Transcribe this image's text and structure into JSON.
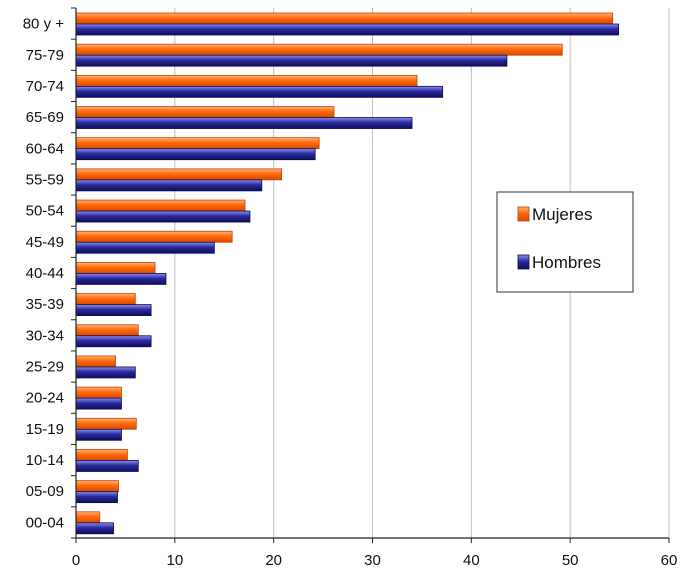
{
  "chart_data": {
    "type": "bar",
    "orientation": "horizontal",
    "title": "",
    "xlabel": "",
    "ylabel": "",
    "xlim": [
      0,
      60
    ],
    "x_ticks": [
      "0",
      "10",
      "20",
      "30",
      "40",
      "50",
      "60"
    ],
    "grid": "vertical",
    "legend_position": "right",
    "categories": [
      "80 y +",
      "75-79",
      "70-74",
      "65-69",
      "60-64",
      "55-59",
      "50-54",
      "45-49",
      "40-44",
      "35-39",
      "30-34",
      "25-29",
      "20-24",
      "15-19",
      "10-14",
      "05-09",
      "00-04"
    ],
    "series": [
      {
        "name": "Mujeres",
        "color": "#ff6600",
        "values": [
          54.3,
          49.2,
          34.5,
          26.1,
          24.6,
          20.8,
          17.1,
          15.8,
          8.0,
          6.0,
          6.3,
          4.0,
          4.6,
          6.1,
          5.2,
          4.3,
          2.4
        ]
      },
      {
        "name": "Hombres",
        "color": "#1a1a80",
        "values": [
          54.9,
          43.6,
          37.1,
          34.0,
          24.2,
          18.8,
          17.6,
          14.0,
          9.1,
          7.6,
          7.6,
          6.0,
          4.6,
          4.6,
          6.3,
          4.2,
          3.8
        ]
      }
    ]
  }
}
